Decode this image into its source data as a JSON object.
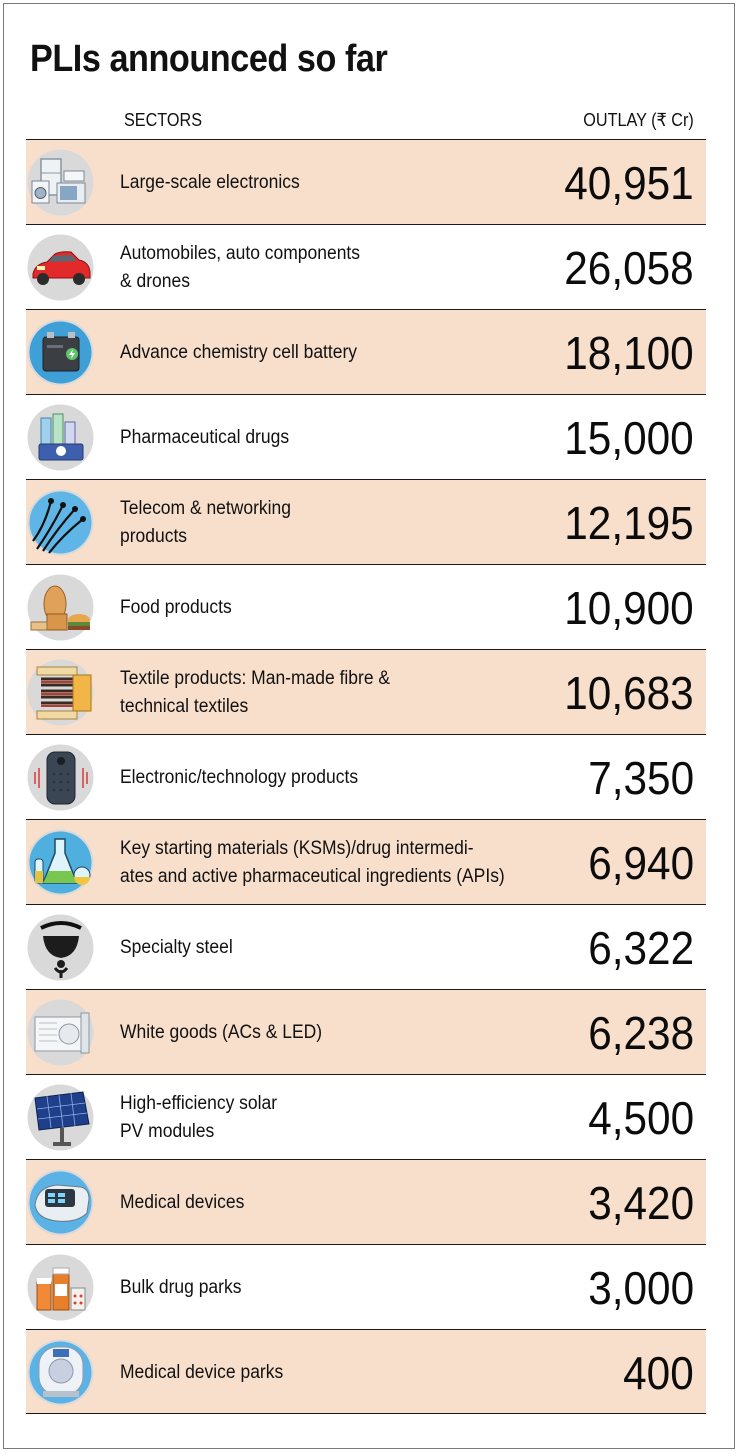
{
  "title": "PLIs announced so far",
  "headers": {
    "sectors": "SECTORS",
    "outlay": "OUTLAY (₹ Cr)"
  },
  "colors": {
    "shaded_row": "#f8dfcc",
    "icon_circle": "#d9d9d9",
    "rule": "#1a1a1a"
  },
  "rows": [
    {
      "sector": "Large-scale electronics",
      "outlay": "40,951",
      "icon": "appliances-icon",
      "shaded": true
    },
    {
      "sector": "Automobiles, auto components\n& drones",
      "outlay": "26,058",
      "icon": "car-icon",
      "shaded": false
    },
    {
      "sector": "Advance chemistry cell battery",
      "outlay": "18,100",
      "icon": "battery-icon",
      "shaded": true
    },
    {
      "sector": "Pharmaceutical drugs",
      "outlay": "15,000",
      "icon": "pharma-icon",
      "shaded": false
    },
    {
      "sector": "Telecom & networking\nproducts",
      "outlay": "12,195",
      "icon": "network-icon",
      "shaded": true
    },
    {
      "sector": "Food products",
      "outlay": "10,900",
      "icon": "food-icon",
      "shaded": false
    },
    {
      "sector": "Textile products: Man-made fibre &\ntechnical textiles",
      "outlay": "10,683",
      "icon": "textile-spool-icon",
      "shaded": true
    },
    {
      "sector": "Electronic/technology products",
      "outlay": "7,350",
      "icon": "smart-speaker-icon",
      "shaded": false
    },
    {
      "sector": "Key starting materials (KSMs)/drug intermedi-\nates and active pharmaceutical ingredients (APIs)",
      "outlay": "6,940",
      "icon": "flask-icon",
      "shaded": true
    },
    {
      "sector": "Specialty steel",
      "outlay": "6,322",
      "icon": "ladle-icon",
      "shaded": false
    },
    {
      "sector": "White goods (ACs & LED)",
      "outlay": "6,238",
      "icon": "air-conditioner-icon",
      "shaded": true
    },
    {
      "sector": "High-efficiency solar\nPV modules",
      "outlay": "4,500",
      "icon": "solar-panel-icon",
      "shaded": false
    },
    {
      "sector": "Medical devices",
      "outlay": "3,420",
      "icon": "oximeter-icon",
      "shaded": true
    },
    {
      "sector": "Bulk drug parks",
      "outlay": "3,000",
      "icon": "medicine-bottles-icon",
      "shaded": false
    },
    {
      "sector": "Medical device parks",
      "outlay": "400",
      "icon": "mri-scanner-icon",
      "shaded": true
    }
  ]
}
